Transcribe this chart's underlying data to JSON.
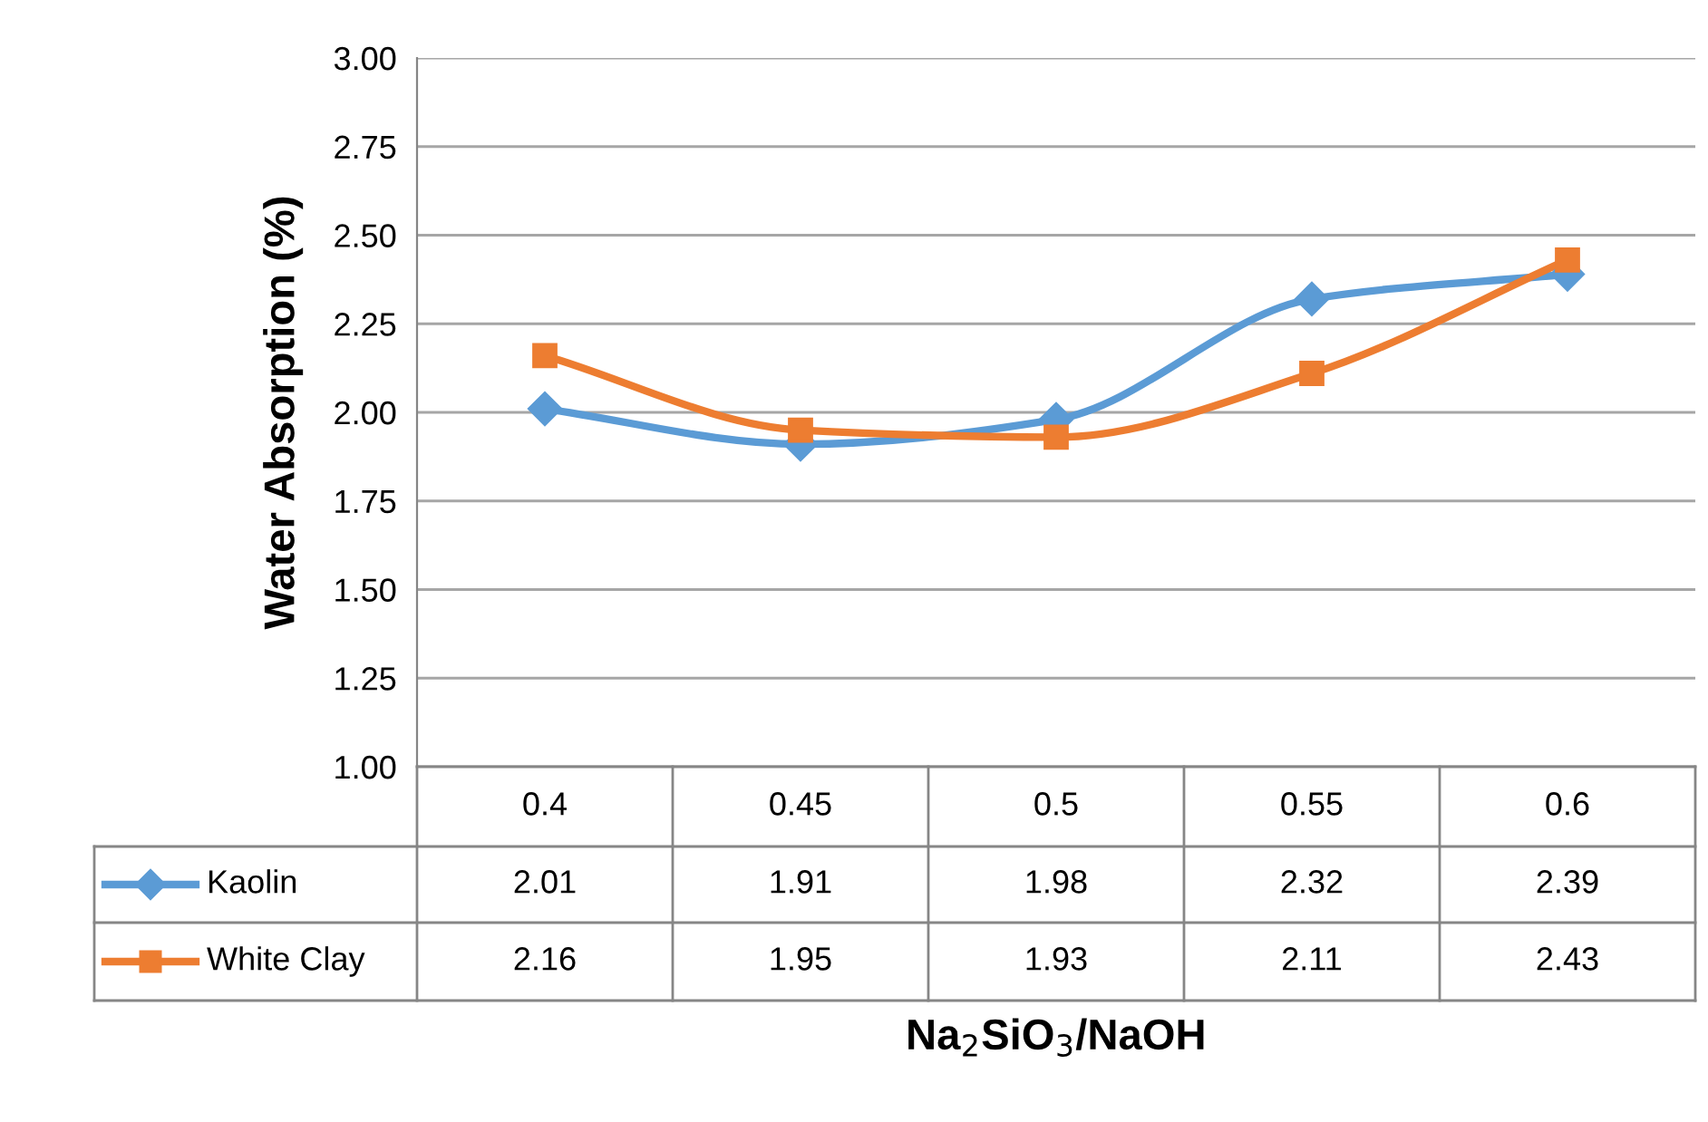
{
  "chart_data": {
    "type": "line",
    "xlabel": "Na$_{2}$SiO$_{3}$/NaOH",
    "ylabel": "Water Absorption (%)",
    "categories": [
      "0.4",
      "0.45",
      "0.5",
      "0.55",
      "0.6"
    ],
    "series": [
      {
        "name": "Kaolin",
        "color": "#5b9bd5",
        "marker": "diamond",
        "values": [
          2.01,
          1.91,
          1.98,
          2.32,
          2.39
        ]
      },
      {
        "name": "White Clay",
        "color": "#ed7d31",
        "marker": "square",
        "values": [
          2.16,
          1.95,
          1.93,
          2.11,
          2.43
        ]
      }
    ],
    "ylim": [
      1,
      3
    ],
    "yticks": [
      {
        "value": 1,
        "label": "1.00"
      },
      {
        "value": 1.25,
        "label": "1.25"
      },
      {
        "value": 1.5,
        "label": "1.50"
      },
      {
        "value": 1.75,
        "label": "1.75"
      },
      {
        "value": 2,
        "label": "2.00"
      },
      {
        "value": 2.25,
        "label": "2.25"
      },
      {
        "value": 2.5,
        "label": "2.50"
      },
      {
        "value": 2.75,
        "label": "2.75"
      },
      {
        "value": 3,
        "label": "3.00"
      }
    ],
    "grid": "y",
    "legend": "bottom left",
    "data_labels": true,
    "line_style": "solid"
  }
}
